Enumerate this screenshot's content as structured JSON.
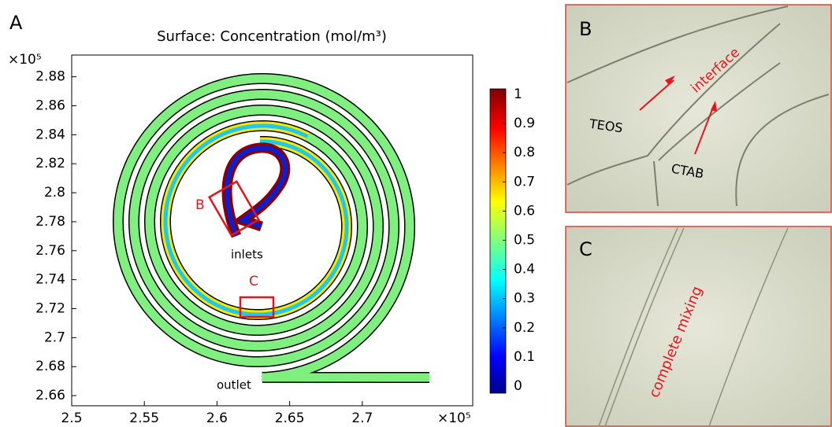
{
  "panel_a": {
    "label": "A",
    "title": "Surface: Concentration (mol/m³)",
    "x_multiplier": "×10⁵",
    "y_multiplier": "×10⁵",
    "xlim": [
      2.5,
      2.776
    ],
    "xticks": [
      2.5,
      2.55,
      2.6,
      2.65,
      2.7
    ],
    "ylim": [
      2.653,
      2.895
    ],
    "yticks": [
      2.66,
      2.68,
      2.7,
      2.72,
      2.74,
      2.76,
      2.78,
      2.8,
      2.82,
      2.84,
      2.86,
      2.88
    ],
    "colorbar": {
      "lim": [
        0,
        1
      ],
      "ticks": [
        0,
        0.1,
        0.2,
        0.3,
        0.4,
        0.5,
        0.6,
        0.7,
        0.8,
        0.9,
        1
      ]
    },
    "annotations": {
      "box_b": "B",
      "box_c": "C",
      "inlets": "inlets",
      "outlet": "outlet"
    }
  },
  "panel_b": {
    "label": "B",
    "annotations": {
      "teos": "TEOS",
      "ctab": "CTAB",
      "interface": "interface"
    }
  },
  "panel_c": {
    "label": "C",
    "annotation": "complete mixing"
  }
}
